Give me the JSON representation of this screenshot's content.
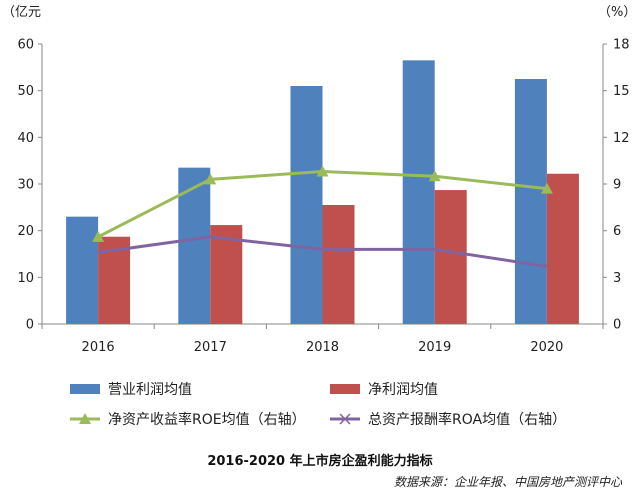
{
  "chart_data": {
    "type": "bar",
    "title": "2016-2020 年上市房企盈利能力指标",
    "source": "数据来源：企业年报、中国房地产测评中心",
    "left_axis": {
      "unit_label": "（亿元",
      "ylim": [
        0,
        60
      ],
      "ticks": [
        0,
        10,
        20,
        30,
        40,
        50,
        60
      ]
    },
    "right_axis": {
      "unit_label": "（%）",
      "ylim": [
        0,
        18
      ],
      "ticks": [
        0,
        3,
        6,
        9,
        12,
        15,
        18
      ]
    },
    "categories": [
      "2016",
      "2017",
      "2018",
      "2019",
      "2020"
    ],
    "bar_series": [
      {
        "name": "营业利润均值",
        "color": "#4f81bd",
        "values": [
          23.0,
          33.5,
          51.0,
          56.5,
          52.5
        ]
      },
      {
        "name": "净利润均值",
        "color": "#c0504d",
        "values": [
          18.7,
          21.2,
          25.5,
          28.7,
          32.2
        ]
      }
    ],
    "line_series": [
      {
        "name": "净资产收益率ROE均值（右轴）",
        "color": "#9bbb59",
        "marker": "triangle",
        "axis": "right",
        "values": [
          5.6,
          9.3,
          9.8,
          9.5,
          8.7
        ]
      },
      {
        "name": "总资产报酬率ROA均值（右轴）",
        "color": "#8064a2",
        "marker": "x",
        "axis": "right",
        "values": [
          4.6,
          5.6,
          4.8,
          4.8,
          3.7
        ]
      }
    ],
    "grid": false,
    "legend_position": "bottom"
  }
}
